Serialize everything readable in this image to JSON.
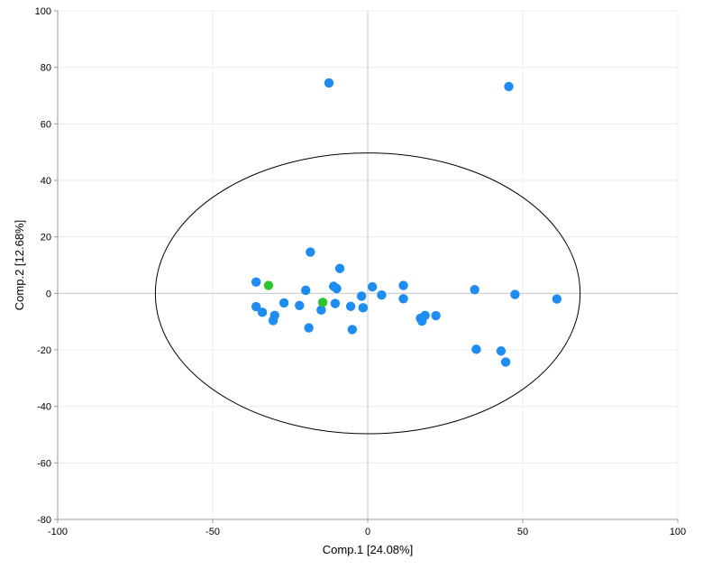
{
  "chart_data": {
    "type": "scatter",
    "xlabel": "Comp.1 [24.08%]",
    "ylabel": "Comp.2 [12.68%]",
    "xlim": [
      -100,
      100
    ],
    "ylim": [
      -80,
      100
    ],
    "xticks": [
      -100,
      -50,
      0,
      50,
      100
    ],
    "yticks": [
      -80,
      -60,
      -40,
      -20,
      0,
      20,
      40,
      60,
      80,
      100
    ],
    "grid": true,
    "ellipse": {
      "cx": 0,
      "cy": 0,
      "rx": 68.5,
      "ry": 49.7
    },
    "series": [
      {
        "color": "#1e8cf0",
        "points": [
          [
            -12.5,
            74.5
          ],
          [
            45.5,
            73.2
          ],
          [
            -18.5,
            14.6
          ],
          [
            -9,
            8.8
          ],
          [
            -36,
            4.0
          ],
          [
            -20,
            1.1
          ],
          [
            -11,
            2.5
          ],
          [
            -10,
            1.7
          ],
          [
            1.5,
            2.3
          ],
          [
            11.5,
            2.8
          ],
          [
            34.5,
            1.3
          ],
          [
            47.5,
            -0.4
          ],
          [
            61,
            -2.0
          ],
          [
            -2,
            -1.0
          ],
          [
            4.5,
            -0.6
          ],
          [
            11.5,
            -1.9
          ],
          [
            -27,
            -3.4
          ],
          [
            -22,
            -4.3
          ],
          [
            -10.5,
            -3.6
          ],
          [
            -5.5,
            -4.6
          ],
          [
            -1.5,
            -5.1
          ],
          [
            -36,
            -4.7
          ],
          [
            -34,
            -6.7
          ],
          [
            -30,
            -7.8
          ],
          [
            -30.5,
            -9.6
          ],
          [
            -15,
            -5.9
          ],
          [
            -19,
            -12.2
          ],
          [
            -5,
            -12.8
          ],
          [
            17,
            -8.8
          ],
          [
            18.5,
            -7.8
          ],
          [
            17.5,
            -9.8
          ],
          [
            22,
            -7.9
          ],
          [
            35,
            -19.8
          ],
          [
            43,
            -20.4
          ],
          [
            44.5,
            -24.3
          ]
        ]
      },
      {
        "color": "#2ec42e",
        "points": [
          [
            -32,
            2.8
          ],
          [
            -14.5,
            -3.2
          ]
        ]
      }
    ]
  }
}
